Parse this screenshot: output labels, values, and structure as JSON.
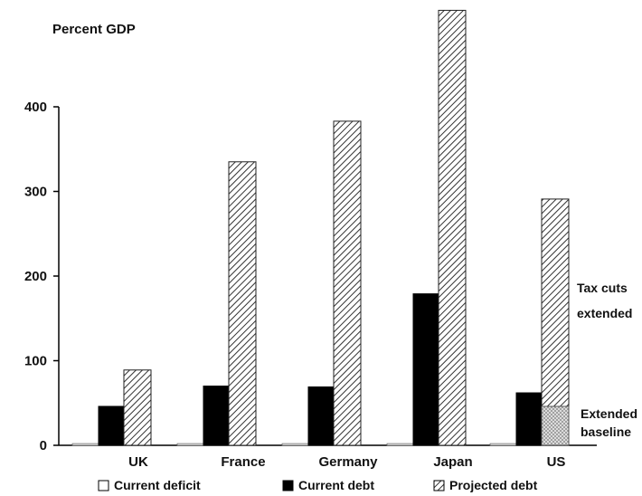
{
  "chart_data": {
    "type": "bar",
    "ylabel": "Percent GDP",
    "ylim": [
      0,
      500
    ],
    "yticks": [
      0,
      100,
      200,
      300,
      400
    ],
    "grid": false,
    "legend_position": "bottom",
    "categories": [
      "UK",
      "France",
      "Germany",
      "Japan",
      "US"
    ],
    "series": [
      {
        "name": "Current deficit",
        "values": [
          2,
          2,
          2,
          2,
          2
        ],
        "fill": "white"
      },
      {
        "name": "Current debt",
        "values": [
          46,
          70,
          69,
          179,
          62
        ],
        "fill": "black"
      },
      {
        "name": "Projected debt",
        "values": [
          89,
          335,
          383,
          514,
          291
        ],
        "fill": "diagonal-hatch"
      }
    ],
    "us_baseline_segment": {
      "category": "US",
      "value": 46,
      "fill": "crosshatch"
    },
    "annotations": {
      "tax_cuts": [
        "Tax cuts",
        "extended"
      ],
      "baseline": [
        "Extended",
        "baseline"
      ]
    },
    "colors": {
      "current_debt": "#000000",
      "projected_debt_hatch": "#333333",
      "current_deficit": "#ffffff"
    }
  }
}
